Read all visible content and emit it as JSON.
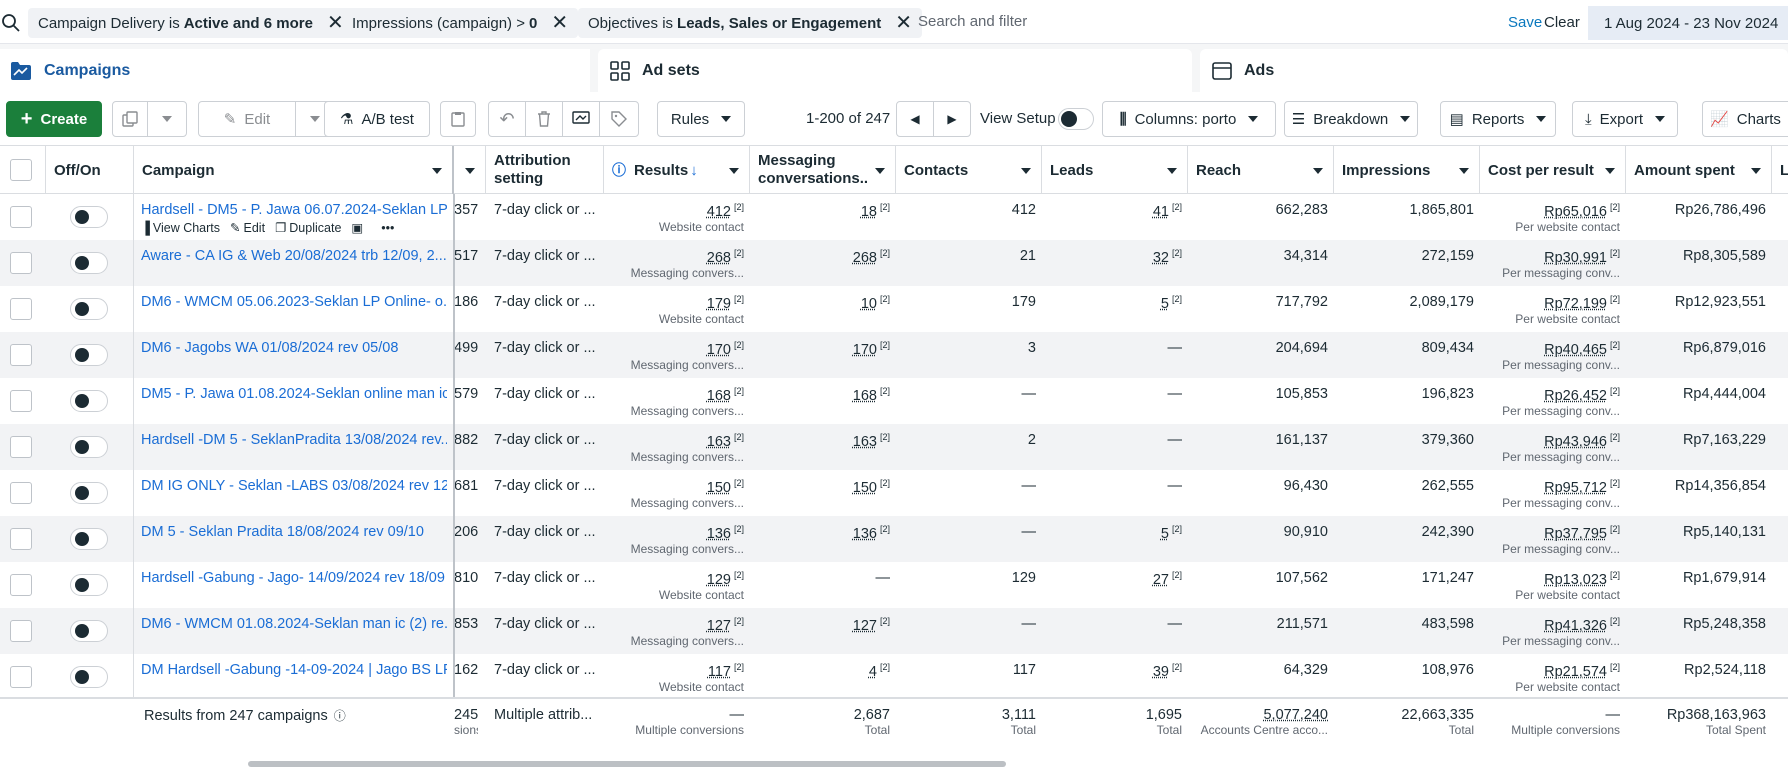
{
  "filters": {
    "chips": [
      {
        "prefix": "Campaign Delivery is",
        "value": "Active and 6 more"
      },
      {
        "prefix": "Impressions (campaign) >",
        "value": "0"
      },
      {
        "prefix": "Objectives is",
        "value": "Leads, Sales or Engagement"
      }
    ],
    "search_placeholder": "Search and filter",
    "save_label": "Save",
    "clear_label": "Clear",
    "date_range": "1 Aug 2024 - 23 Nov 2024"
  },
  "tabs": [
    {
      "label": "Campaigns",
      "active": true
    },
    {
      "label": "Ad sets",
      "active": false
    },
    {
      "label": "Ads",
      "active": false
    }
  ],
  "toolbar": {
    "create_label": "Create",
    "edit_label": "Edit",
    "ab_test_label": "A/B test",
    "rules_label": "Rules",
    "pager_text": "1-200 of 247",
    "view_setup_label": "View Setup",
    "columns_label": "Columns: porto",
    "breakdown_label": "Breakdown",
    "reports_label": "Reports",
    "export_label": "Export",
    "charts_label": "Charts"
  },
  "table": {
    "headers": {
      "offon": "Off/On",
      "campaign": "Campaign",
      "attribution": "Attribution setting",
      "results": "Results",
      "messaging": "Messaging conversations...",
      "contacts": "Contacts",
      "leads": "Leads",
      "reach": "Reach",
      "impressions": "Impressions",
      "cost_per_result": "Cost per result",
      "amount_spent": "Amount spent",
      "extra": "L"
    },
    "row_hover_actions": {
      "view_charts": "View Charts",
      "edit": "Edit",
      "duplicate": "Duplicate",
      "more": "•••"
    },
    "rows": [
      {
        "campaign": "Hardsell - DM5 - P. Jawa 06.07.2024-Seklan LP ...",
        "hidden": "357",
        "attribution": "7-day click or ...",
        "results": "412",
        "results_sub": "Website contact",
        "messaging": "18",
        "messaging_ul": true,
        "contacts": "412",
        "contacts_ul": false,
        "leads": "41",
        "leads_ul": true,
        "reach": "662,283",
        "impressions": "1,865,801",
        "cpr": "Rp65,016",
        "cpr_sub": "Per website contact",
        "amount": "Rp26,786,496"
      },
      {
        "campaign": "Aware - CA IG & Web 20/08/2024 trb 12/09, 2...",
        "hidden": "517",
        "attribution": "7-day click or ...",
        "results": "268",
        "results_sub": "Messaging convers...",
        "messaging": "268",
        "messaging_ul": true,
        "contacts": "21",
        "contacts_ul": false,
        "leads": "32",
        "leads_ul": true,
        "reach": "34,314",
        "impressions": "272,159",
        "cpr": "Rp30,991",
        "cpr_sub": "Per messaging conv...",
        "amount": "Rp8,305,589"
      },
      {
        "campaign": "DM6 - WMCM 05.06.2023-Seklan LP Online- o...",
        "hidden": "186",
        "attribution": "7-day click or ...",
        "results": "179",
        "results_sub": "Website contact",
        "messaging": "10",
        "messaging_ul": true,
        "contacts": "179",
        "contacts_ul": false,
        "leads": "5",
        "leads_ul": true,
        "reach": "717,792",
        "impressions": "2,089,179",
        "cpr": "Rp72,199",
        "cpr_sub": "Per website contact",
        "amount": "Rp12,923,551"
      },
      {
        "campaign": "DM6 - Jagobs WA 01/08/2024 rev 05/08",
        "hidden": "499",
        "attribution": "7-day click or ...",
        "results": "170",
        "results_sub": "Messaging convers...",
        "messaging": "170",
        "messaging_ul": true,
        "contacts": "3",
        "contacts_ul": false,
        "leads": "—",
        "leads_ul": false,
        "reach": "204,694",
        "impressions": "809,434",
        "cpr": "Rp40,465",
        "cpr_sub": "Per messaging conv...",
        "amount": "Rp6,879,016"
      },
      {
        "campaign": "DM5 - P. Jawa 01.08.2024-Seklan online man ic",
        "hidden": "579",
        "attribution": "7-day click or ...",
        "results": "168",
        "results_sub": "Messaging convers...",
        "messaging": "168",
        "messaging_ul": true,
        "contacts": "—",
        "contacts_ul": false,
        "leads": "—",
        "leads_ul": false,
        "reach": "105,853",
        "impressions": "196,823",
        "cpr": "Rp26,452",
        "cpr_sub": "Per messaging conv...",
        "amount": "Rp4,444,004"
      },
      {
        "campaign": "Hardsell -DM 5 - SeklanPradita 13/08/2024 rev...",
        "hidden": "882",
        "attribution": "7-day click or ...",
        "results": "163",
        "results_sub": "Messaging convers...",
        "messaging": "163",
        "messaging_ul": true,
        "contacts": "2",
        "contacts_ul": false,
        "leads": "—",
        "leads_ul": false,
        "reach": "161,137",
        "impressions": "379,360",
        "cpr": "Rp43,946",
        "cpr_sub": "Per messaging conv...",
        "amount": "Rp7,163,229"
      },
      {
        "campaign": "DM IG ONLY - Seklan -LABS 03/08/2024 rev 12...",
        "hidden": "681",
        "attribution": "7-day click or ...",
        "results": "150",
        "results_sub": "Messaging convers...",
        "messaging": "150",
        "messaging_ul": true,
        "contacts": "—",
        "contacts_ul": false,
        "leads": "—",
        "leads_ul": false,
        "reach": "96,430",
        "impressions": "262,555",
        "cpr": "Rp95,712",
        "cpr_sub": "Per messaging conv...",
        "amount": "Rp14,356,854"
      },
      {
        "campaign": "DM 5 - Seklan Pradita 18/08/2024 rev 09/10",
        "hidden": "206",
        "attribution": "7-day click or ...",
        "results": "136",
        "results_sub": "Messaging convers...",
        "messaging": "136",
        "messaging_ul": true,
        "contacts": "—",
        "contacts_ul": false,
        "leads": "5",
        "leads_ul": true,
        "reach": "90,910",
        "impressions": "242,390",
        "cpr": "Rp37,795",
        "cpr_sub": "Per messaging conv...",
        "amount": "Rp5,140,131"
      },
      {
        "campaign": "Hardsell -Gabung - Jago- 14/09/2024 rev 18/09",
        "hidden": "810",
        "attribution": "7-day click or ...",
        "results": "129",
        "results_sub": "Website contact",
        "messaging": "—",
        "messaging_ul": false,
        "contacts": "129",
        "contacts_ul": false,
        "leads": "27",
        "leads_ul": true,
        "reach": "107,562",
        "impressions": "171,247",
        "cpr": "Rp13,023",
        "cpr_sub": "Per website contact",
        "amount": "Rp1,679,914"
      },
      {
        "campaign": "DM6 - WMCM 01.08.2024-Seklan man ic (2) re...",
        "hidden": "853",
        "attribution": "7-day click or ...",
        "results": "127",
        "results_sub": "Messaging convers...",
        "messaging": "127",
        "messaging_ul": true,
        "contacts": "—",
        "contacts_ul": false,
        "leads": "—",
        "leads_ul": false,
        "reach": "211,571",
        "impressions": "483,598",
        "cpr": "Rp41,326",
        "cpr_sub": "Per messaging conv...",
        "amount": "Rp5,248,358"
      },
      {
        "campaign": "DM Hardsell -Gabung -14-09-2024 | Jago BS LP",
        "hidden": "162",
        "attribution": "7-day click or ...",
        "results": "117",
        "results_sub": "Website contact",
        "messaging": "4",
        "messaging_ul": true,
        "contacts": "117",
        "contacts_ul": false,
        "leads": "39",
        "leads_ul": true,
        "reach": "64,329",
        "impressions": "108,976",
        "cpr": "Rp21,574",
        "cpr_sub": "Per website contact",
        "amount": "Rp2,524,118"
      }
    ],
    "sup_mark": "[2]",
    "footer": {
      "label": "Results from 247 campaigns",
      "hidden": "245",
      "hidden_sub": "sions",
      "attribution": "Multiple attrib...",
      "results": "—",
      "results_sub": "Multiple conversions",
      "messaging": "2,687",
      "messaging_sub": "Total",
      "contacts": "3,111",
      "contacts_sub": "Total",
      "leads": "1,695",
      "leads_sub": "Total",
      "reach": "5,077,240",
      "reach_sub": "Accounts Centre acco...",
      "impressions": "22,663,335",
      "impressions_sub": "Total",
      "cpr": "—",
      "cpr_sub": "Multiple conversions",
      "amount": "Rp368,163,963",
      "amount_sub": "Total Spent"
    }
  },
  "colors": {
    "create_green": "#1b7f3b",
    "link_blue": "#1a6dd5",
    "active_tab_blue": "#1a5aa0"
  }
}
